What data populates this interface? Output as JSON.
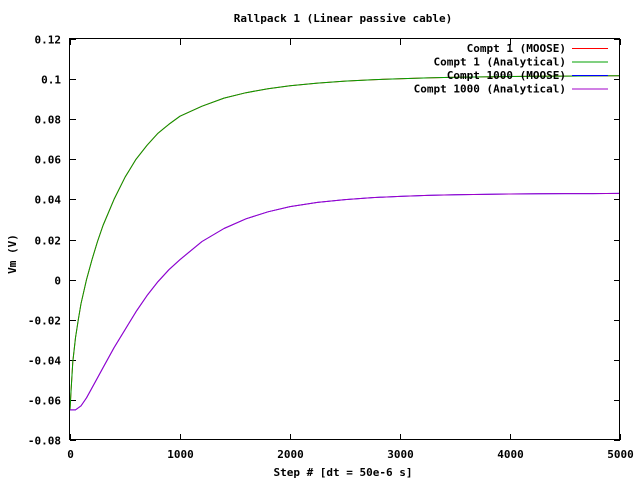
{
  "chart_data": {
    "type": "line",
    "title": "Rallpack 1 (Linear passive cable)",
    "xlabel": "Step # [dt = 50e-6 s]",
    "ylabel": "Vm (V)",
    "xlim": [
      0,
      5000
    ],
    "ylim": [
      -0.08,
      0.12
    ],
    "xticks": [
      0,
      1000,
      2000,
      3000,
      4000,
      5000
    ],
    "yticks": [
      -0.08,
      -0.06,
      -0.04,
      -0.02,
      0,
      0.02,
      0.04,
      0.06,
      0.08,
      0.1,
      0.12
    ],
    "xtick_labels": [
      "0",
      "1000",
      "2000",
      "3000",
      "4000",
      "5000"
    ],
    "ytick_labels": [
      "-0.08",
      "-0.06",
      "-0.04",
      "-0.02",
      "0",
      "0.02",
      "0.04",
      "0.06",
      "0.08",
      "0.1",
      "0.12"
    ],
    "grid": false,
    "legend_position": "top-right",
    "series": [
      {
        "name": "Compt 1 (MOOSE)",
        "color": "#ff0000",
        "x": [
          0,
          10,
          25,
          50,
          75,
          100,
          150,
          200,
          250,
          300,
          400,
          500,
          600,
          700,
          800,
          900,
          1000,
          1200,
          1400,
          1600,
          1800,
          2000,
          2250,
          2500,
          2750,
          3000,
          3250,
          3500,
          3750,
          4000,
          4250,
          4500,
          4750,
          5000
        ],
        "y": [
          -0.065,
          -0.055,
          -0.041,
          -0.029,
          -0.02,
          -0.012,
          0.0,
          0.01,
          0.019,
          0.027,
          0.04,
          0.051,
          0.06,
          0.067,
          0.073,
          0.0775,
          0.0815,
          0.0865,
          0.0905,
          0.0932,
          0.0952,
          0.0967,
          0.098,
          0.099,
          0.0997,
          0.1002,
          0.1006,
          0.1009,
          0.1011,
          0.1013,
          0.1014,
          0.1015,
          0.1016,
          0.1017
        ]
      },
      {
        "name": "Compt 1 (Analytical)",
        "color": "#00a000",
        "x": [
          0,
          10,
          25,
          50,
          75,
          100,
          150,
          200,
          250,
          300,
          400,
          500,
          600,
          700,
          800,
          900,
          1000,
          1200,
          1400,
          1600,
          1800,
          2000,
          2250,
          2500,
          2750,
          3000,
          3250,
          3500,
          3750,
          4000,
          4250,
          4500,
          4750,
          5000
        ],
        "y": [
          -0.065,
          -0.055,
          -0.041,
          -0.029,
          -0.02,
          -0.012,
          0.0,
          0.01,
          0.019,
          0.027,
          0.04,
          0.051,
          0.06,
          0.067,
          0.073,
          0.0775,
          0.0815,
          0.0865,
          0.0905,
          0.0932,
          0.0952,
          0.0967,
          0.098,
          0.099,
          0.0997,
          0.1002,
          0.1006,
          0.1009,
          0.1011,
          0.1013,
          0.1014,
          0.1015,
          0.1016,
          0.1017
        ]
      },
      {
        "name": "Compt 1000 (MOOSE)",
        "color": "#0000ff",
        "x": [
          0,
          50,
          100,
          150,
          200,
          300,
          400,
          500,
          600,
          700,
          800,
          900,
          1000,
          1200,
          1400,
          1600,
          1800,
          2000,
          2250,
          2500,
          2750,
          3000,
          3250,
          3500,
          3750,
          4000,
          4250,
          4500,
          4750,
          5000
        ],
        "y": [
          -0.065,
          -0.065,
          -0.063,
          -0.059,
          -0.054,
          -0.044,
          -0.034,
          -0.025,
          -0.016,
          -0.008,
          -0.001,
          0.005,
          0.01,
          0.019,
          0.0255,
          0.0303,
          0.0338,
          0.0364,
          0.0385,
          0.0399,
          0.0409,
          0.0415,
          0.042,
          0.0423,
          0.0425,
          0.0427,
          0.0428,
          0.0429,
          0.0429,
          0.043
        ]
      },
      {
        "name": "Compt 1000 (Analytical)",
        "color": "#a000c8",
        "x": [
          0,
          50,
          100,
          150,
          200,
          300,
          400,
          500,
          600,
          700,
          800,
          900,
          1000,
          1200,
          1400,
          1600,
          1800,
          2000,
          2250,
          2500,
          2750,
          3000,
          3250,
          3500,
          3750,
          4000,
          4250,
          4500,
          4750,
          5000
        ],
        "y": [
          -0.065,
          -0.065,
          -0.063,
          -0.059,
          -0.054,
          -0.044,
          -0.034,
          -0.025,
          -0.016,
          -0.008,
          -0.001,
          0.005,
          0.01,
          0.019,
          0.0255,
          0.0303,
          0.0338,
          0.0364,
          0.0385,
          0.0399,
          0.0409,
          0.0415,
          0.042,
          0.0423,
          0.0425,
          0.0427,
          0.0428,
          0.0429,
          0.0429,
          0.043
        ]
      }
    ]
  }
}
